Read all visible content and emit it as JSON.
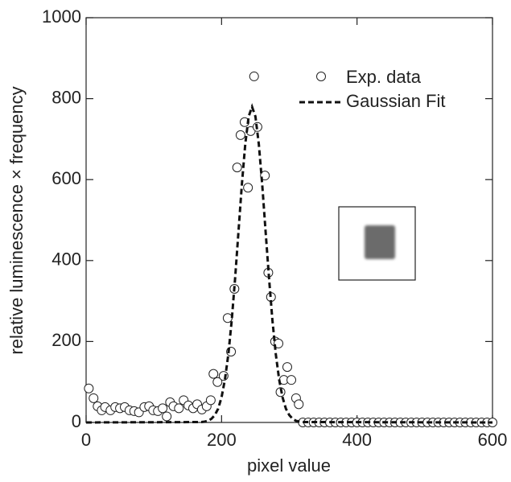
{
  "chart_data": {
    "type": "scatter",
    "x_label": "pixel value",
    "y_label": "relative luminescence × frequency",
    "xlim": [
      0,
      600
    ],
    "xticks": [
      0,
      200,
      400,
      600
    ],
    "ylim": [
      0,
      1000
    ],
    "yticks": [
      0,
      200,
      400,
      600,
      800,
      1000
    ],
    "legend": "upper right",
    "series": [
      {
        "name": "Exp. data",
        "type": "scatter",
        "color": "#222222",
        "x": [
          4,
          11,
          17,
          23,
          28,
          36,
          43,
          50,
          57,
          64,
          71,
          78,
          86,
          93,
          99,
          106,
          113,
          119,
          124,
          129,
          137,
          144,
          151,
          158,
          164,
          171,
          178,
          184,
          188,
          194,
          203,
          209,
          214,
          219,
          223,
          228,
          234,
          239,
          243,
          248,
          253,
          264,
          269,
          273,
          279,
          284,
          287,
          292,
          297,
          303,
          310,
          314,
          320,
          328,
          336,
          344,
          352,
          360,
          368,
          376,
          384,
          392,
          400,
          408,
          416,
          424,
          432,
          440,
          448,
          456,
          464,
          472,
          480,
          488,
          496,
          504,
          512,
          520,
          528,
          536,
          544,
          552,
          560,
          568,
          576,
          584,
          592,
          600
        ],
        "values": [
          84,
          60,
          40,
          30,
          38,
          30,
          38,
          35,
          38,
          30,
          28,
          25,
          38,
          40,
          30,
          28,
          35,
          15,
          50,
          40,
          35,
          55,
          42,
          35,
          45,
          32,
          40,
          55,
          120,
          100,
          115,
          258,
          175,
          330,
          630,
          710,
          742,
          580,
          720,
          855,
          730,
          610,
          370,
          310,
          200,
          195,
          75,
          105,
          137,
          105,
          60,
          45,
          0,
          0,
          0,
          0,
          0,
          0,
          0,
          0,
          0,
          0,
          0,
          0,
          0,
          0,
          0,
          0,
          0,
          0,
          0,
          0,
          0,
          0,
          0,
          0,
          0,
          0,
          0,
          0,
          0,
          0,
          0,
          0,
          0,
          0,
          0,
          0
        ]
      },
      {
        "name": "Gaussian Fit",
        "type": "line",
        "color": "#111111",
        "x": [
          0,
          170,
          175,
          180,
          185,
          190,
          195,
          200,
          205,
          210,
          215,
          220,
          225,
          230,
          235,
          240,
          245,
          250,
          255,
          260,
          265,
          270,
          275,
          280,
          285,
          290,
          295,
          300,
          305,
          310,
          315,
          320,
          600
        ],
        "values": [
          0,
          1,
          2,
          4,
          9,
          18,
          34,
          62,
          106,
          169,
          253,
          357,
          473,
          589,
          688,
          756,
          780,
          756,
          688,
          589,
          473,
          357,
          253,
          169,
          106,
          62,
          34,
          18,
          9,
          4,
          2,
          1,
          0
        ]
      }
    ]
  }
}
